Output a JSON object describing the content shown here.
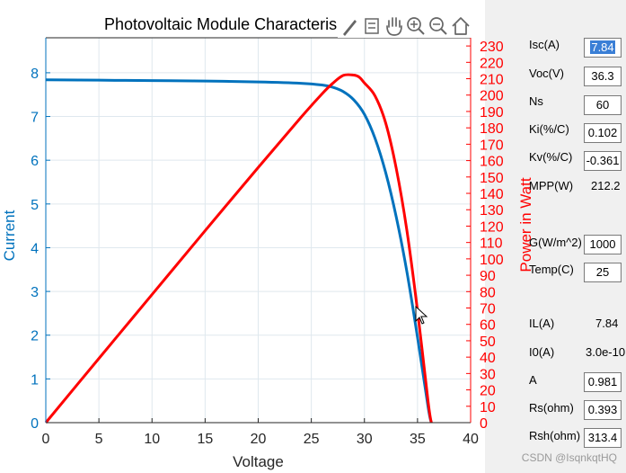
{
  "chart_data": {
    "type": "line",
    "title": "Photovoltaic Module Characteris",
    "xlabel": "Voltage",
    "ylabel_left": "Current",
    "ylabel_right": "Power in Watt",
    "xlim": [
      0,
      40
    ],
    "ylim_left": [
      0,
      8.8
    ],
    "ylim_right": [
      0,
      235
    ],
    "xticks": [
      0,
      5,
      10,
      15,
      20,
      25,
      30,
      35,
      40
    ],
    "yticks_left": [
      0,
      1,
      2,
      3,
      4,
      5,
      6,
      7,
      8
    ],
    "yticks_right": [
      0,
      10,
      20,
      30,
      40,
      50,
      60,
      70,
      80,
      90,
      100,
      110,
      120,
      130,
      140,
      150,
      160,
      170,
      180,
      190,
      200,
      210,
      220,
      230
    ],
    "grid": true,
    "series": [
      {
        "name": "Current",
        "axis": "left",
        "color": "#0072bd",
        "x": [
          0,
          5,
          10,
          15,
          20,
          24,
          26,
          27,
          28,
          29,
          30,
          31,
          32,
          33,
          34,
          35,
          36,
          36.3
        ],
        "y": [
          7.84,
          7.83,
          7.82,
          7.81,
          7.79,
          7.76,
          7.72,
          7.67,
          7.57,
          7.38,
          7.05,
          6.5,
          5.72,
          4.7,
          3.45,
          1.95,
          0.35,
          0
        ]
      },
      {
        "name": "Power",
        "axis": "right",
        "color": "#ff0000",
        "x": [
          0,
          5,
          10,
          15,
          20,
          24,
          26,
          27,
          28,
          29,
          29.5,
          30,
          31,
          32,
          33,
          34,
          35,
          36,
          36.3
        ],
        "y": [
          0,
          39.2,
          78.2,
          117.2,
          155.8,
          186.2,
          200.7,
          207.1,
          212.0,
          212.2,
          211.0,
          207.4,
          199.5,
          183.0,
          155.1,
          117.3,
          68.3,
          12.6,
          0
        ]
      }
    ]
  },
  "toolbar": {
    "icons": [
      "brush-icon",
      "data-tip-icon",
      "pan-hand-icon",
      "zoom-in-icon",
      "zoom-out-icon",
      "home-icon"
    ]
  },
  "params": {
    "isc": {
      "label": "Isc(A)",
      "value": "7.84"
    },
    "voc": {
      "label": "Voc(V)",
      "value": "36.3"
    },
    "ns": {
      "label": "Ns",
      "value": "60"
    },
    "ki": {
      "label": "Ki(%/C)",
      "value": "0.102"
    },
    "kv": {
      "label": "Kv(%/C)",
      "value": "-0.361"
    },
    "mpp": {
      "label": "MPP(W)",
      "value": "212.2"
    },
    "g": {
      "label": "G(W/m^2)",
      "value": "1000"
    },
    "temp": {
      "label": "Temp(C)",
      "value": "25"
    },
    "il": {
      "label": "IL(A)",
      "value": "7.84"
    },
    "i0": {
      "label": "I0(A)",
      "value": "3.0e-10"
    },
    "a": {
      "label": "A",
      "value": "0.981"
    },
    "rs": {
      "label": "Rs(ohm)",
      "value": "0.393"
    },
    "rsh": {
      "label": "Rsh(ohm)",
      "value": "313.4"
    }
  },
  "watermark": "CSDN @IsqnkqtHQ"
}
